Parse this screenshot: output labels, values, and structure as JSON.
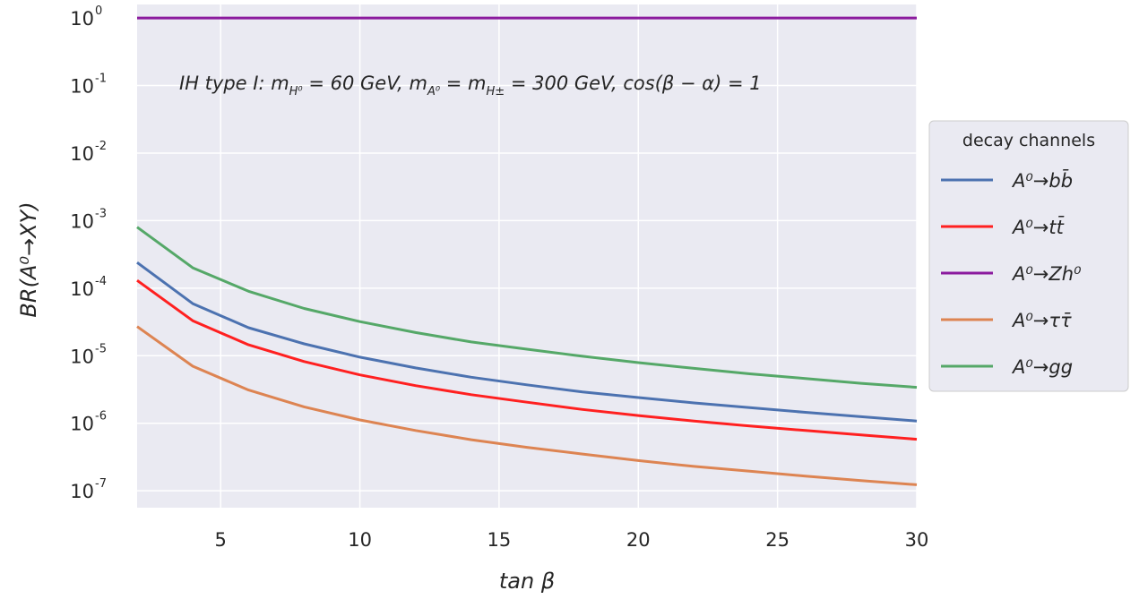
{
  "chart_data": {
    "type": "line",
    "xlabel": "tan β",
    "ylabel": "BR(A⁰→XY)",
    "annotation": "IH type I: m_{H⁰} = 60 GeV, m_{A⁰} = m_{H±} = 300 GeV, cos(β − α) = 1",
    "xlim": [
      2,
      30
    ],
    "ylim_log10": [
      -7.25,
      0.2
    ],
    "yscale": "log",
    "grid": true,
    "background": "#eaeaf2",
    "x_ticks": [
      "5",
      "10",
      "15",
      "20",
      "25",
      "30"
    ],
    "y_ticks": [
      {
        "base": "10",
        "exp": "0"
      },
      {
        "base": "10",
        "exp": "-1"
      },
      {
        "base": "10",
        "exp": "-2"
      },
      {
        "base": "10",
        "exp": "-3"
      },
      {
        "base": "10",
        "exp": "-4"
      },
      {
        "base": "10",
        "exp": "-5"
      },
      {
        "base": "10",
        "exp": "-6"
      },
      {
        "base": "10",
        "exp": "-7"
      }
    ],
    "legend": {
      "title": "decay channels",
      "placement": "right, outside"
    },
    "x": [
      2,
      4,
      6,
      8,
      10,
      12,
      14,
      16,
      18,
      20,
      22,
      24,
      26,
      28,
      30
    ],
    "series": [
      {
        "name": "A⁰→bb̄",
        "color": "#4c72b0",
        "values": [
          0.00024,
          5.9e-05,
          2.6e-05,
          1.5e-05,
          9.5e-06,
          6.6e-06,
          4.8e-06,
          3.7e-06,
          2.9e-06,
          2.4e-06,
          2e-06,
          1.7e-06,
          1.45e-06,
          1.25e-06,
          1.08e-06
        ]
      },
      {
        "name": "A⁰→tt̄",
        "color": "#ff2020",
        "values": [
          0.00013,
          3.3e-05,
          1.45e-05,
          8.2e-06,
          5.2e-06,
          3.6e-06,
          2.65e-06,
          2.05e-06,
          1.6e-06,
          1.3e-06,
          1.08e-06,
          9.1e-07,
          7.8e-07,
          6.7e-07,
          5.8e-07
        ]
      },
      {
        "name": "A⁰→Zh⁰",
        "color": "#8b1a9e",
        "values": [
          1,
          1,
          1,
          1,
          1,
          1,
          1,
          1,
          1,
          1,
          1,
          1,
          1,
          1,
          1
        ]
      },
      {
        "name": "A⁰→ττ̄",
        "color": "#dd8452",
        "values": [
          2.7e-05,
          7e-06,
          3.1e-06,
          1.75e-06,
          1.12e-06,
          7.8e-07,
          5.7e-07,
          4.4e-07,
          3.5e-07,
          2.8e-07,
          2.3e-07,
          1.95e-07,
          1.65e-07,
          1.42e-07,
          1.23e-07
        ]
      },
      {
        "name": "A⁰→gg",
        "color": "#55a868",
        "values": [
          0.0008,
          0.0002,
          9e-05,
          5e-05,
          3.2e-05,
          2.2e-05,
          1.6e-05,
          1.25e-05,
          9.8e-06,
          7.9e-06,
          6.5e-06,
          5.4e-06,
          4.6e-06,
          3.9e-06,
          3.4e-06
        ]
      }
    ]
  }
}
